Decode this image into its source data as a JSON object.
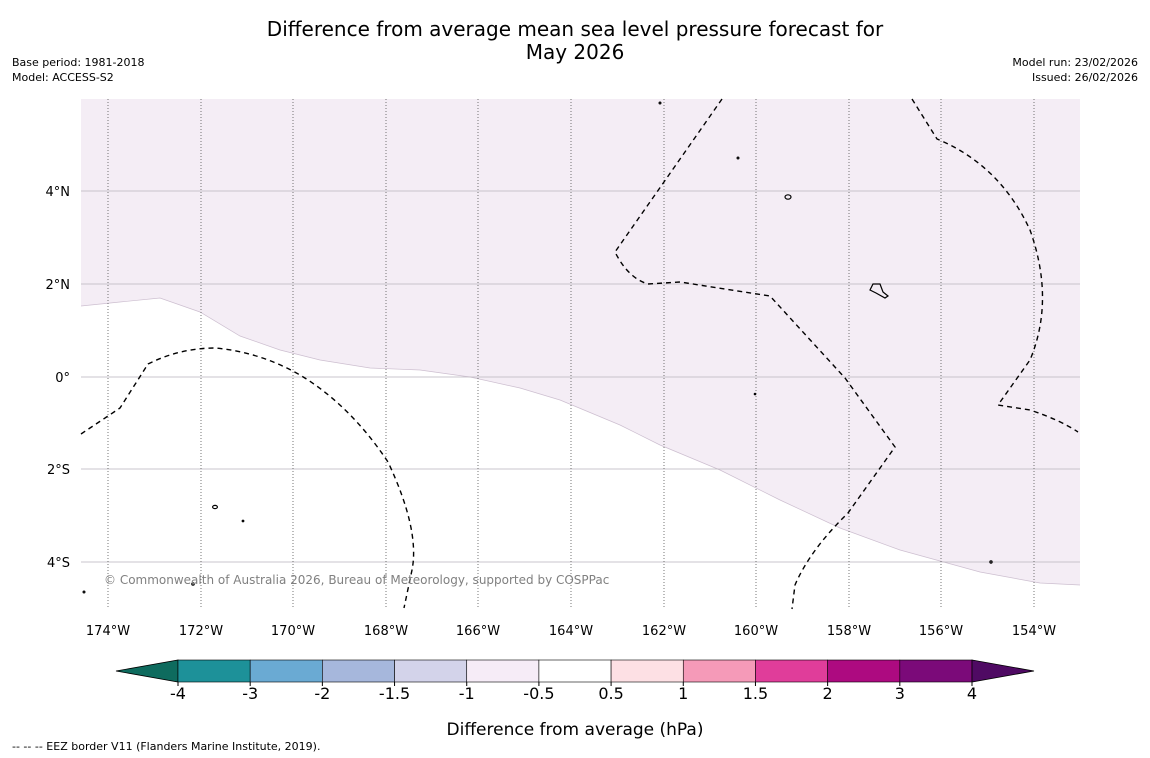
{
  "title": {
    "line1": "Difference from average mean sea level pressure forecast for",
    "line2": "May 2026"
  },
  "meta_left": {
    "base_period": "Base period: 1981-2018",
    "model": "Model: ACCESS-S2"
  },
  "meta_right": {
    "model_run": "Model run: 23/02/2026",
    "issued": "Issued: 26/02/2026"
  },
  "copyright": "© Commonwealth of Australia 2026, Bureau of Meteorology, supported by COSPPac",
  "colorbar": {
    "label": "Difference from average (hPa)",
    "ticks": [
      "-4",
      "-3",
      "-2",
      "-1.5",
      "-1",
      "-0.5",
      "0.5",
      "1",
      "1.5",
      "2",
      "3",
      "4"
    ],
    "colors": [
      "#0e6b5e",
      "#1d9199",
      "#6aaad3",
      "#a6b7dc",
      "#d3d3ea",
      "#f6ecf7",
      "#ffffff",
      "#fde0e4",
      "#f59ab8",
      "#e03d9a",
      "#ad0a80",
      "#7b0a79",
      "#4f0a63"
    ]
  },
  "footer": "--  --  -- EEZ border V11 (Flanders Marine Institute, 2019).",
  "map": {
    "lon_range": [
      -174.6,
      -152.9
    ],
    "lat_range": [
      -4.8,
      6.0
    ],
    "lon_ticks": [
      "174°W",
      "172°W",
      "170°W",
      "168°W",
      "166°W",
      "164°W",
      "162°W",
      "160°W",
      "158°W",
      "156°W",
      "154°W"
    ],
    "lat_ticks": [
      "4°N",
      "2°N",
      "0°",
      "2°S",
      "4°S"
    ],
    "shaded_category": "-1 to -0.5",
    "shaded_color": "#f4edf5"
  }
}
